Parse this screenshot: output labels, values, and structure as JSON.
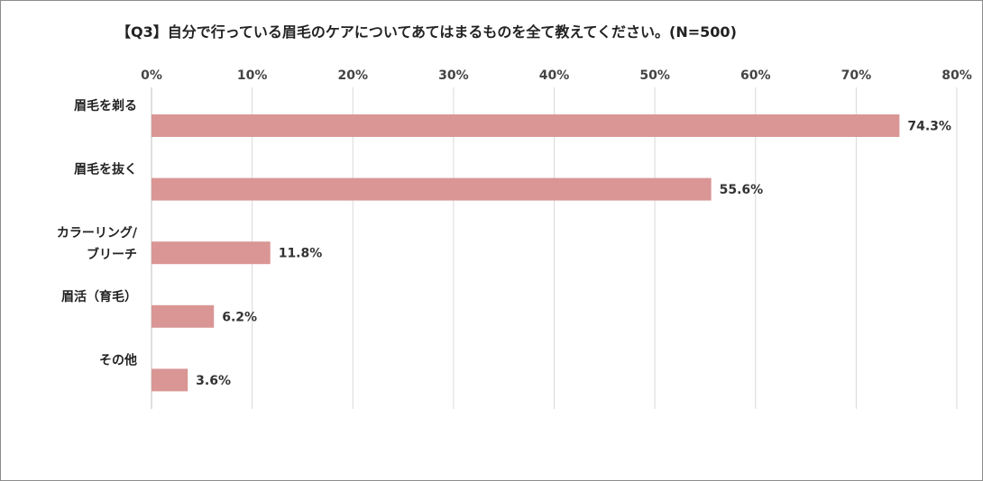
{
  "chart_data": {
    "type": "bar",
    "orientation": "horizontal",
    "title": "【Q3】自分で行っている眉毛のケアについてあてはまるものを全て教えてください。(N=500)",
    "categories": [
      [
        "眉毛を剃る"
      ],
      [
        "眉毛を抜く"
      ],
      [
        "カラーリング/",
        "ブリーチ"
      ],
      [
        "眉活（育毛）"
      ],
      [
        "その他"
      ]
    ],
    "values": [
      74.3,
      55.6,
      11.8,
      6.2,
      3.6
    ],
    "value_labels": [
      "74.3%",
      "55.6%",
      "11.8%",
      "6.2%",
      "3.6%"
    ],
    "xlim": [
      0,
      80
    ],
    "xticks": [
      0,
      10,
      20,
      30,
      40,
      50,
      60,
      70,
      80
    ],
    "xtick_labels": [
      "0%",
      "10%",
      "20%",
      "30%",
      "40%",
      "50%",
      "60%",
      "70%",
      "80%"
    ],
    "x_axis_position": "top",
    "grid": true,
    "legend": "none",
    "bar_color": "#d99694",
    "grid_color": "#d9d9d9",
    "axis_color": "#bfbfbf"
  }
}
